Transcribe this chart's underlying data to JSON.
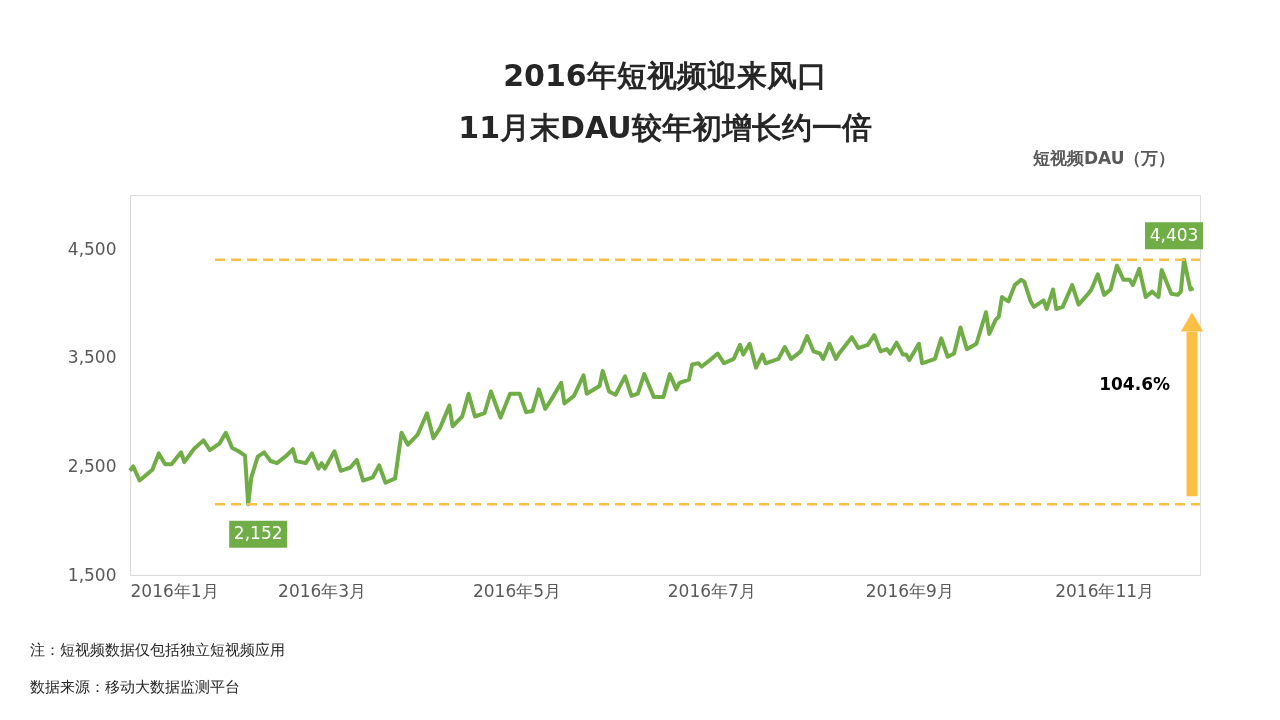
{
  "chart_data": {
    "type": "line",
    "title": "2016年短视频迎来风口",
    "subtitle": "11月末DAU较年初增长约一倍",
    "ylabel": "短视频DAU（万）",
    "annotations": [
      "104.6%",
      "注：短视频数据仅包括独立短视频应用",
      "数据来源：移动大数据监测平台"
    ],
    "x": [
      "2016-01-01",
      "2016-01-02",
      "2016-01-04",
      "2016-01-08",
      "2016-01-10",
      "2016-01-12",
      "2016-01-14",
      "2016-01-17",
      "2016-01-18",
      "2016-01-21",
      "2016-01-24",
      "2016-01-26",
      "2016-01-29",
      "2016-01-31",
      "2016-02-02",
      "2016-02-04",
      "2016-02-06",
      "2016-02-07",
      "2016-02-08",
      "2016-02-10",
      "2016-02-12",
      "2016-02-14",
      "2016-02-16",
      "2016-02-19",
      "2016-02-21",
      "2016-02-22",
      "2016-02-25",
      "2016-02-27",
      "2016-02-29",
      "2016-03-01",
      "2016-03-02",
      "2016-03-05",
      "2016-03-07",
      "2016-03-10",
      "2016-03-12",
      "2016-03-14",
      "2016-03-17",
      "2016-03-19",
      "2016-03-21",
      "2016-03-24",
      "2016-03-26",
      "2016-03-28",
      "2016-03-31",
      "2016-04-03",
      "2016-04-05",
      "2016-04-07",
      "2016-04-10",
      "2016-04-11",
      "2016-04-14",
      "2016-04-16",
      "2016-04-18",
      "2016-04-21",
      "2016-04-23",
      "2016-04-26",
      "2016-04-29",
      "2016-05-02",
      "2016-05-04",
      "2016-05-06",
      "2016-05-08",
      "2016-05-10",
      "2016-05-12",
      "2016-05-15",
      "2016-05-16",
      "2016-05-19",
      "2016-05-22",
      "2016-05-23",
      "2016-05-27",
      "2016-05-28",
      "2016-05-30",
      "2016-06-01",
      "2016-06-04",
      "2016-06-06",
      "2016-06-08",
      "2016-06-10",
      "2016-06-13",
      "2016-06-16",
      "2016-06-18",
      "2016-06-20",
      "2016-06-21",
      "2016-06-24",
      "2016-06-25",
      "2016-06-27",
      "2016-06-28",
      "2016-07-01",
      "2016-07-03",
      "2016-07-05",
      "2016-07-08",
      "2016-07-10",
      "2016-07-11",
      "2016-07-13",
      "2016-07-15",
      "2016-07-17",
      "2016-07-18",
      "2016-07-22",
      "2016-07-24",
      "2016-07-26",
      "2016-07-29",
      "2016-07-31",
      "2016-08-02",
      "2016-08-04",
      "2016-08-05",
      "2016-08-07",
      "2016-08-09",
      "2016-08-10",
      "2016-08-14",
      "2016-08-16",
      "2016-08-19",
      "2016-08-21",
      "2016-08-23",
      "2016-08-25",
      "2016-08-26",
      "2016-08-28",
      "2016-08-30",
      "2016-08-31",
      "2016-09-01",
      "2016-09-04",
      "2016-09-05",
      "2016-09-09",
      "2016-09-11",
      "2016-09-13",
      "2016-09-15",
      "2016-09-17",
      "2016-09-19",
      "2016-09-22",
      "2016-09-25",
      "2016-09-26",
      "2016-09-28",
      "2016-09-29",
      "2016-09-30",
      "2016-10-02",
      "2016-10-04",
      "2016-10-06",
      "2016-10-07",
      "2016-10-09",
      "2016-10-10",
      "2016-10-13",
      "2016-10-14",
      "2016-10-16",
      "2016-10-17",
      "2016-10-19",
      "2016-10-22",
      "2016-10-24",
      "2016-10-27",
      "2016-10-28",
      "2016-10-30",
      "2016-11-01",
      "2016-11-03",
      "2016-11-05",
      "2016-11-07",
      "2016-11-09",
      "2016-11-10",
      "2016-11-12",
      "2016-11-14",
      "2016-11-16",
      "2016-11-18",
      "2016-11-19",
      "2016-11-22",
      "2016-11-24",
      "2016-11-25",
      "2016-11-26",
      "2016-11-28",
      "2016-11-29"
    ],
    "series": [
      {
        "color": "#70ad47",
        "values": [
          2460,
          2500,
          2370,
          2470,
          2620,
          2520,
          2520,
          2630,
          2540,
          2660,
          2740,
          2650,
          2710,
          2810,
          2670,
          2640,
          2600,
          2152,
          2400,
          2590,
          2630,
          2550,
          2530,
          2600,
          2660,
          2550,
          2530,
          2620,
          2480,
          2530,
          2480,
          2640,
          2460,
          2490,
          2560,
          2370,
          2400,
          2510,
          2350,
          2390,
          2810,
          2700,
          2790,
          2990,
          2760,
          2850,
          3060,
          2870,
          2960,
          3170,
          2960,
          2990,
          3190,
          2950,
          3170,
          3170,
          3000,
          3010,
          3210,
          3030,
          3120,
          3270,
          3080,
          3150,
          3340,
          3170,
          3240,
          3380,
          3190,
          3160,
          3330,
          3150,
          3170,
          3350,
          3140,
          3140,
          3350,
          3210,
          3270,
          3300,
          3440,
          3450,
          3420,
          3490,
          3540,
          3450,
          3490,
          3620,
          3530,
          3630,
          3410,
          3530,
          3450,
          3490,
          3600,
          3490,
          3560,
          3700,
          3560,
          3540,
          3490,
          3630,
          3490,
          3540,
          3690,
          3590,
          3620,
          3710,
          3560,
          3580,
          3540,
          3640,
          3530,
          3530,
          3480,
          3630,
          3450,
          3490,
          3680,
          3510,
          3540,
          3780,
          3580,
          3630,
          3920,
          3720,
          3850,
          3880,
          4060,
          4020,
          4170,
          4220,
          4200,
          4020,
          3970,
          4030,
          3950,
          4130,
          3950,
          3970,
          4170,
          3990,
          4090,
          4130,
          4270,
          4080,
          4130,
          4350,
          4220,
          4220,
          4170,
          4320,
          4060,
          4110,
          4060,
          4310,
          4090,
          4080,
          4110,
          4403,
          4130,
          4140
        ]
      }
    ],
    "xlim": [
      "2016-01-01",
      "2016-12-01"
    ],
    "xticks": [
      {
        "value": "2016-01-01",
        "label": "2016年1月"
      },
      {
        "value": "2016-03-01",
        "label": "2016年3月"
      },
      {
        "value": "2016-05-01",
        "label": "2016年5月"
      },
      {
        "value": "2016-07-01",
        "label": "2016年7月"
      },
      {
        "value": "2016-09-01",
        "label": "2016年9月"
      },
      {
        "value": "2016-11-01",
        "label": "2016年11月"
      }
    ],
    "ylim": [
      1500,
      5000
    ],
    "yticks": [
      {
        "value": 1500,
        "label": "1,500"
      },
      {
        "value": 2500,
        "label": "2,500"
      },
      {
        "value": 3500,
        "label": "3,500"
      },
      {
        "value": 4500,
        "label": "4,500"
      }
    ],
    "ref_lines": [
      {
        "axis": "y",
        "value": 4403,
        "label": "4,403",
        "color": "#f9c046",
        "line_style": "dashed"
      },
      {
        "axis": "y",
        "value": 2152,
        "label": "2,152",
        "color": "#f9c046",
        "line_style": "dashed"
      }
    ],
    "grid": false,
    "line_style": "solid"
  }
}
